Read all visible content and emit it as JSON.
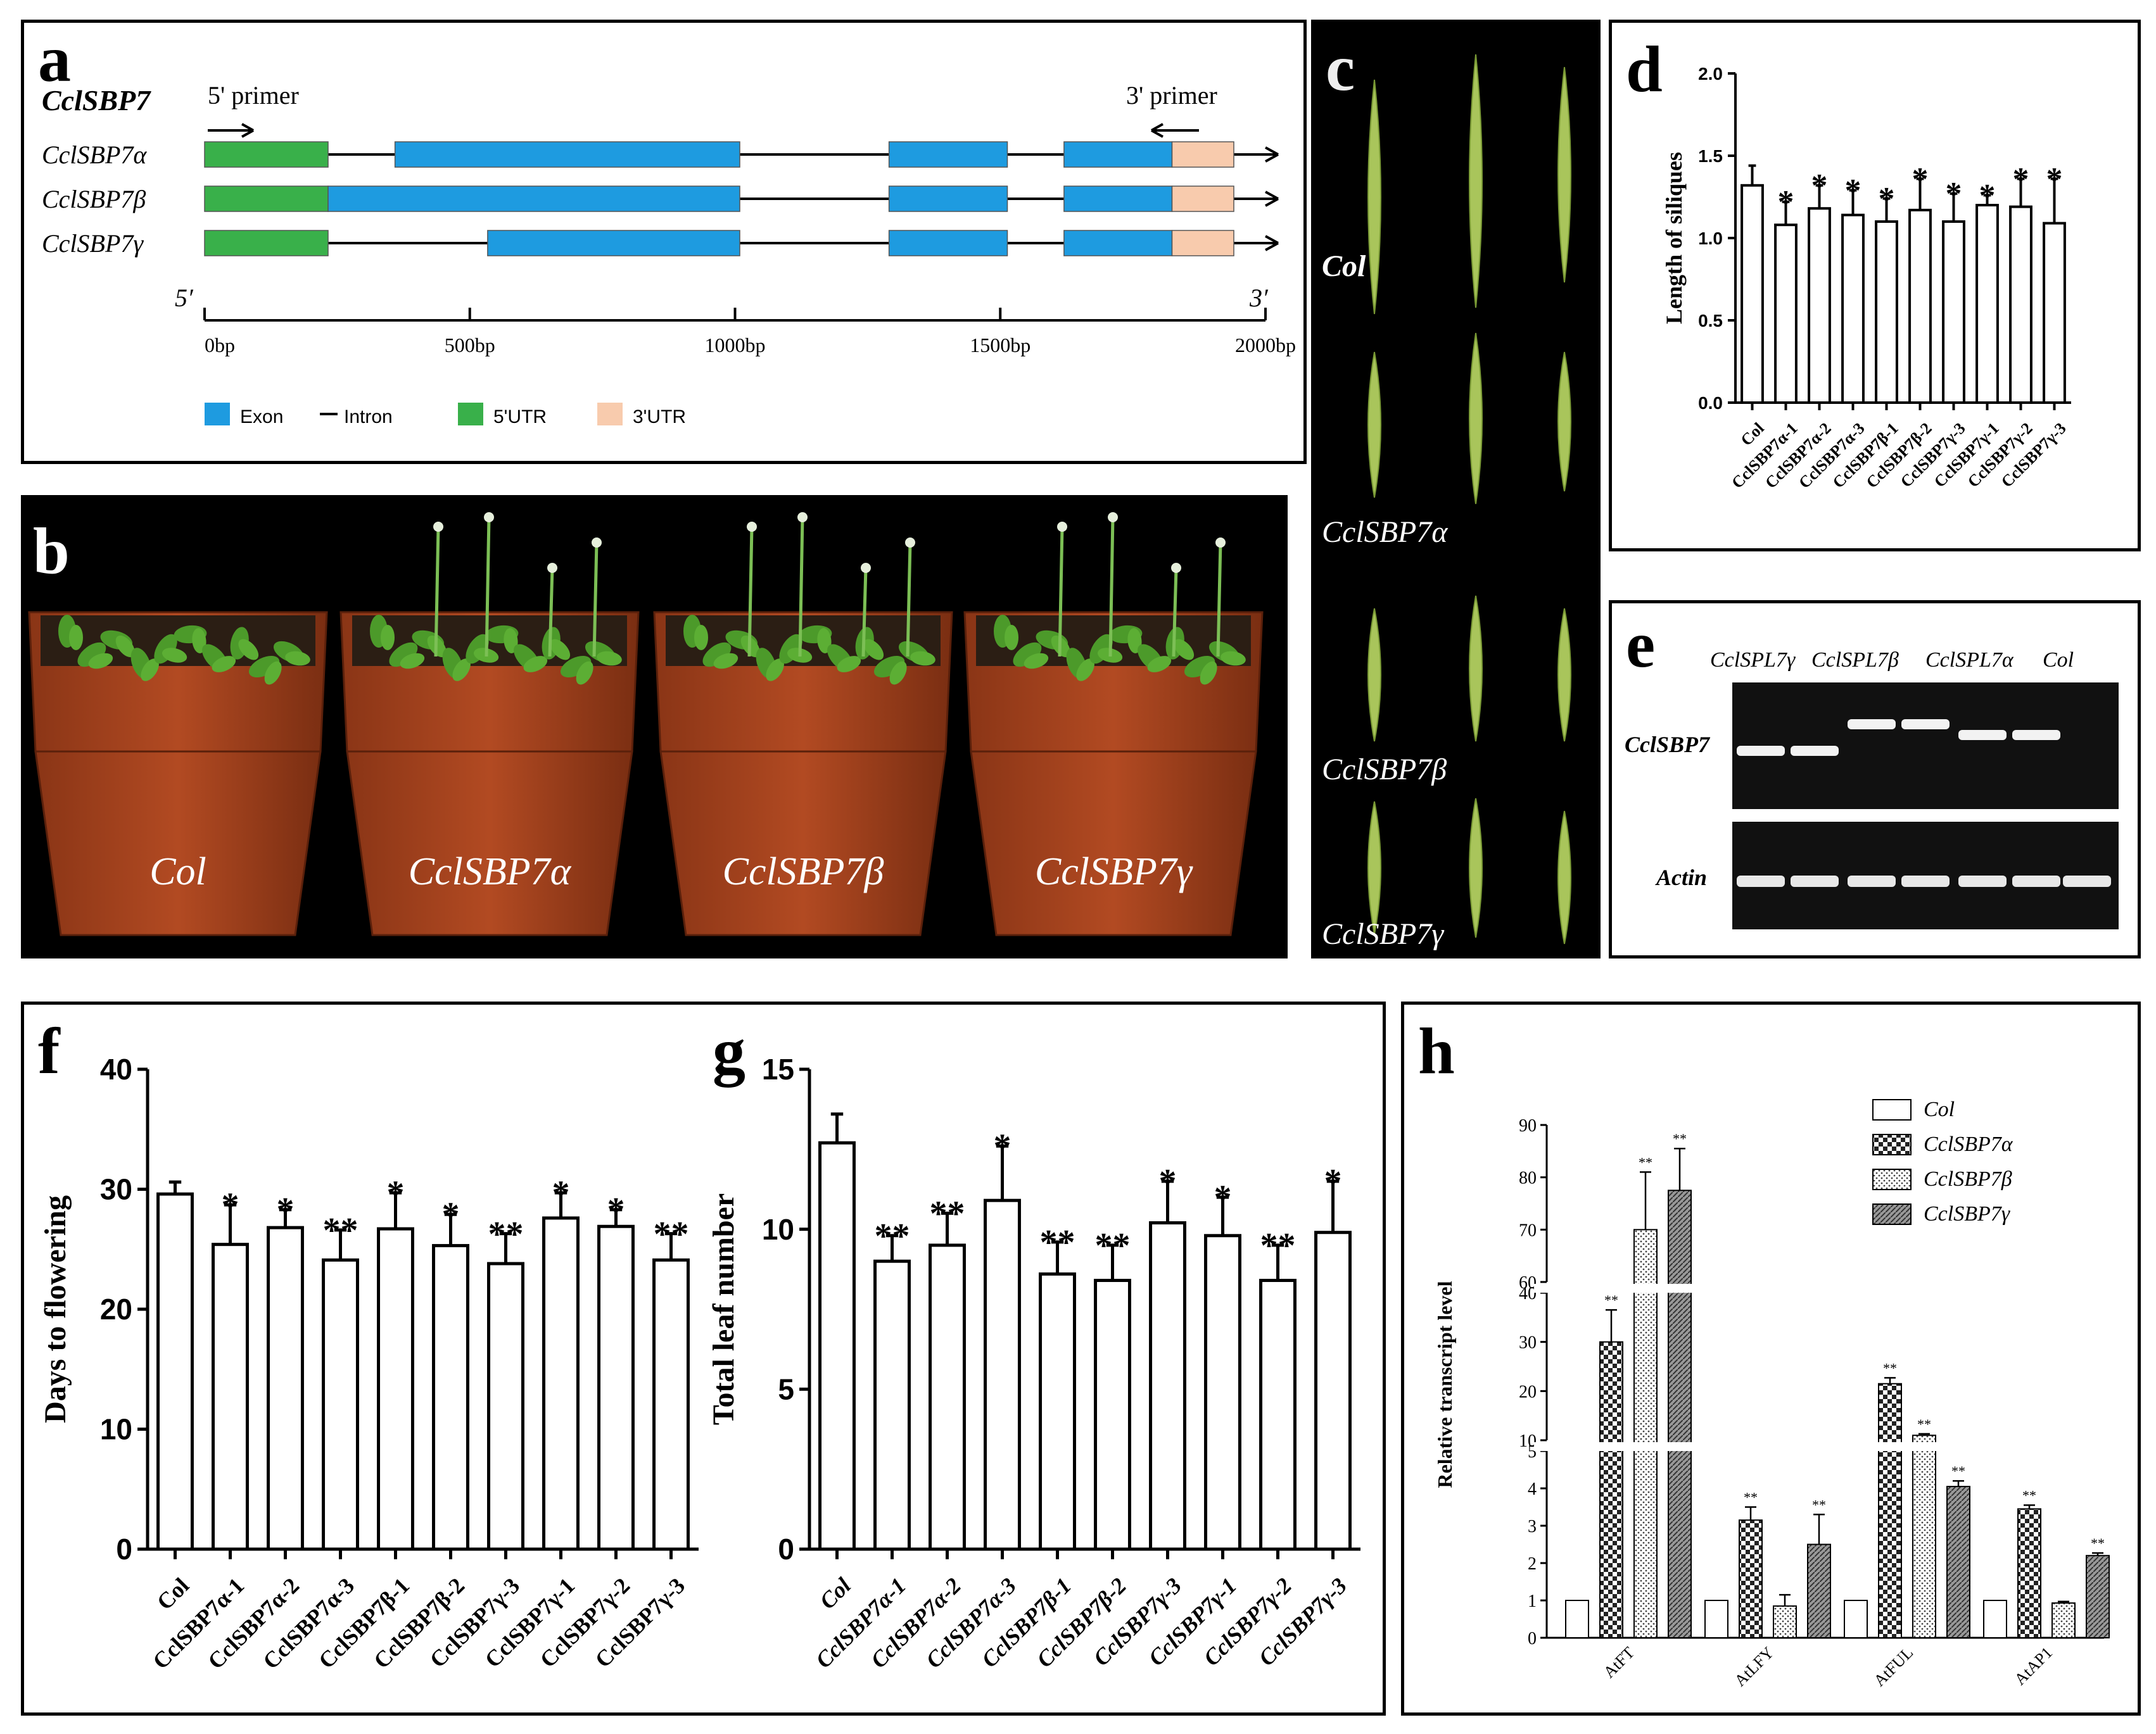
{
  "panels": {
    "a": "a",
    "b": "b",
    "c": "c",
    "d": "d",
    "e": "e",
    "f": "f",
    "g": "g",
    "h": "h"
  },
  "gene_structure": {
    "gene": "CclSBP7",
    "primer5": "5' primer",
    "primer3": "3' primer",
    "end5": "5′",
    "end3": "3′",
    "isoforms": [
      {
        "name": "CclSBP7α",
        "utr5": [
          0,
          240
        ],
        "exons": [
          [
            370,
            1040
          ],
          [
            1330,
            1560
          ],
          [
            1670,
            1880
          ]
        ],
        "utr3": [
          1880,
          2000
        ]
      },
      {
        "name": "CclSBP7β",
        "utr5": [
          0,
          240
        ],
        "exons": [
          [
            240,
            1040
          ],
          [
            1330,
            1560
          ],
          [
            1670,
            1880
          ]
        ],
        "utr3": [
          1880,
          2000
        ]
      },
      {
        "name": "CclSBP7γ",
        "utr5": [
          0,
          240
        ],
        "exons": [
          [
            550,
            1040
          ],
          [
            1330,
            1560
          ],
          [
            1670,
            1880
          ]
        ],
        "utr3": [
          1880,
          2000
        ]
      }
    ],
    "scale_ticks": [
      "0bp",
      "500bp",
      "1000bp",
      "1500bp",
      "2000bp"
    ],
    "legend": [
      {
        "label": "Exon",
        "kind": "box",
        "color": "#1e9be0"
      },
      {
        "label": "Intron",
        "kind": "line",
        "color": "#000000"
      },
      {
        "label": "5'UTR",
        "kind": "box",
        "color": "#39b04a"
      },
      {
        "label": "3'UTR",
        "kind": "box",
        "color": "#f8cbad"
      }
    ]
  },
  "plants_photo": {
    "labels": [
      "Col",
      "CclSBP7α",
      "CclSBP7β",
      "CclSBP7γ"
    ]
  },
  "siliques_photo": {
    "labels": [
      "Col",
      "CclSBP7α",
      "CclSBP7β",
      "CclSBP7γ"
    ]
  },
  "gel": {
    "lane_groups": [
      "CclSPL7γ",
      "CclSPL7β",
      "CclSPL7α",
      "Col"
    ],
    "row_labels": [
      "CclSBP7",
      "Actin"
    ]
  },
  "chart_data": [
    {
      "panel": "d",
      "type": "bar",
      "ylabel": "Length of siliques",
      "ylim": [
        0,
        2.0
      ],
      "yticks": [
        "0.0",
        "0.5",
        "1.0",
        "1.5",
        "2.0"
      ],
      "categories": [
        "Col",
        "CclSBP7α-1",
        "CclSBP7α-2",
        "CclSBP7α-3",
        "CclSBP7β-1",
        "CclSBP7β-2",
        "CclSBP7γ-3",
        "CclSBP7γ-1",
        "CclSBP7γ-2",
        "CclSBP7γ-3"
      ],
      "values": [
        1.32,
        1.08,
        1.18,
        1.14,
        1.1,
        1.17,
        1.1,
        1.2,
        1.19,
        1.09
      ],
      "errors": [
        0.12,
        0.14,
        0.14,
        0.15,
        0.14,
        0.19,
        0.17,
        0.06,
        0.17,
        0.27
      ],
      "significance": [
        "",
        "*",
        "*",
        "*",
        "*",
        "*",
        "*",
        "*",
        "*",
        "*"
      ]
    },
    {
      "panel": "f",
      "type": "bar",
      "ylabel": "Days to flowering",
      "ylim": [
        0,
        40
      ],
      "yticks": [
        "0",
        "10",
        "20",
        "30",
        "40"
      ],
      "categories": [
        "Col",
        "CclSBP7α-1",
        "CclSBP7α-2",
        "CclSBP7α-3",
        "CclSBP7β-1",
        "CclSBP7β-2",
        "CclSBP7γ-3",
        "CclSBP7γ-1",
        "CclSBP7γ-2",
        "CclSBP7γ-3"
      ],
      "values": [
        29.6,
        25.4,
        26.8,
        24.1,
        26.7,
        25.3,
        23.8,
        27.6,
        26.9,
        24.1
      ],
      "errors": [
        1.0,
        3.3,
        1.5,
        2.5,
        3.0,
        2.6,
        2.5,
        2.1,
        1.4,
        2.2
      ],
      "significance": [
        "",
        "*",
        "*",
        "**",
        "*",
        "*",
        "**",
        "*",
        "*",
        "**"
      ]
    },
    {
      "panel": "g",
      "type": "bar",
      "ylabel": "Total leaf number",
      "ylim": [
        0,
        15
      ],
      "yticks": [
        "0",
        "5",
        "10",
        "15"
      ],
      "categories": [
        "Col",
        "CclSBP7α-1",
        "CclSBP7α-2",
        "CclSBP7α-3",
        "CclSBP7β-1",
        "CclSBP7β-2",
        "CclSBP7γ-3",
        "CclSBP7γ-1",
        "CclSBP7γ-2",
        "CclSBP7γ-3"
      ],
      "values": [
        12.7,
        9.0,
        9.5,
        10.9,
        8.6,
        8.4,
        10.2,
        9.8,
        8.4,
        9.9
      ],
      "errors": [
        0.9,
        0.8,
        1.0,
        1.7,
        1.0,
        1.1,
        1.3,
        1.2,
        1.1,
        1.6
      ],
      "significance": [
        "",
        "**",
        "**",
        "*",
        "**",
        "**",
        "*",
        "*",
        "**",
        "*"
      ]
    },
    {
      "panel": "h",
      "type": "bar",
      "ylabel": "Relative transcript level",
      "broken_axis": [
        [
          0,
          5
        ],
        [
          10,
          40
        ],
        [
          60,
          90
        ]
      ],
      "yticks": [
        "0",
        "1",
        "2",
        "3",
        "4",
        "5",
        "10",
        "20",
        "30",
        "40",
        "60",
        "70",
        "80",
        "90"
      ],
      "categories": [
        "AtFT",
        "AtLFY",
        "AtFUL",
        "AtAP1"
      ],
      "series": [
        {
          "name": "Col",
          "pattern": "white",
          "values": [
            1,
            1,
            1,
            1
          ],
          "errors": [
            0,
            0,
            0,
            0
          ],
          "significance": [
            "",
            "",
            "",
            ""
          ]
        },
        {
          "name": "CclSBP7α",
          "pattern": "check",
          "values": [
            30,
            3.15,
            21.5,
            3.45
          ],
          "errors": [
            6.5,
            0.35,
            1.2,
            0.1
          ],
          "significance": [
            "**",
            "**",
            "**",
            "**"
          ]
        },
        {
          "name": "CclSBP7β",
          "pattern": "dots",
          "values": [
            70,
            0.85,
            11,
            0.93
          ],
          "errors": [
            11,
            0.3,
            0.3,
            0.04
          ],
          "significance": [
            "**",
            "",
            "**",
            ""
          ]
        },
        {
          "name": "CclSBP7γ",
          "pattern": "hatch",
          "values": [
            77.5,
            2.5,
            4.05,
            2.2
          ],
          "errors": [
            8,
            0.8,
            0.15,
            0.07
          ],
          "significance": [
            "**",
            "**",
            "**",
            "**"
          ]
        }
      ]
    }
  ]
}
